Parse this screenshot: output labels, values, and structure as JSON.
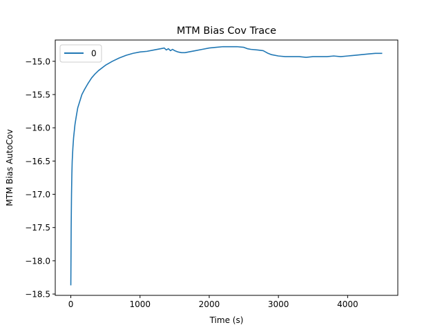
{
  "chart_data": {
    "type": "line",
    "title": "MTM Bias Cov Trace",
    "xlabel": "Time (s)",
    "ylabel": "MTM Bias AutoCov",
    "xlim": [
      -225,
      4725
    ],
    "ylim": [
      -18.52,
      -14.68
    ],
    "xticks": [
      0,
      1000,
      2000,
      3000,
      4000
    ],
    "yticks": [
      -18.5,
      -18.0,
      -17.5,
      -17.0,
      -16.5,
      -16.0,
      -15.5,
      -15.0
    ],
    "xtick_labels": [
      "0",
      "1000",
      "2000",
      "3000",
      "4000"
    ],
    "ytick_labels": [
      "−18.5",
      "−18.0",
      "−17.5",
      "−17.0",
      "−16.5",
      "−16.0",
      "−15.5",
      "−15.0"
    ],
    "grid": false,
    "legend_position": "upper-left",
    "series": [
      {
        "name": "0",
        "color": "#1f77b4",
        "points": [
          [
            0,
            -18.37
          ],
          [
            5,
            -17.5
          ],
          [
            10,
            -17.0
          ],
          [
            15,
            -16.7
          ],
          [
            20,
            -16.5
          ],
          [
            30,
            -16.3
          ],
          [
            40,
            -16.15
          ],
          [
            60,
            -15.95
          ],
          [
            80,
            -15.82
          ],
          [
            100,
            -15.7
          ],
          [
            130,
            -15.6
          ],
          [
            160,
            -15.5
          ],
          [
            200,
            -15.42
          ],
          [
            250,
            -15.33
          ],
          [
            300,
            -15.25
          ],
          [
            350,
            -15.19
          ],
          [
            400,
            -15.14
          ],
          [
            500,
            -15.06
          ],
          [
            600,
            -15.0
          ],
          [
            700,
            -14.95
          ],
          [
            800,
            -14.91
          ],
          [
            900,
            -14.88
          ],
          [
            1000,
            -14.86
          ],
          [
            1100,
            -14.85
          ],
          [
            1200,
            -14.83
          ],
          [
            1300,
            -14.81
          ],
          [
            1350,
            -14.8
          ],
          [
            1380,
            -14.83
          ],
          [
            1410,
            -14.81
          ],
          [
            1440,
            -14.84
          ],
          [
            1470,
            -14.82
          ],
          [
            1500,
            -14.84
          ],
          [
            1550,
            -14.86
          ],
          [
            1600,
            -14.87
          ],
          [
            1650,
            -14.87
          ],
          [
            1700,
            -14.86
          ],
          [
            1800,
            -14.84
          ],
          [
            1900,
            -14.82
          ],
          [
            2000,
            -14.8
          ],
          [
            2100,
            -14.79
          ],
          [
            2200,
            -14.78
          ],
          [
            2300,
            -14.78
          ],
          [
            2400,
            -14.78
          ],
          [
            2500,
            -14.79
          ],
          [
            2550,
            -14.81
          ],
          [
            2600,
            -14.82
          ],
          [
            2700,
            -14.83
          ],
          [
            2780,
            -14.84
          ],
          [
            2850,
            -14.88
          ],
          [
            2900,
            -14.9
          ],
          [
            3000,
            -14.92
          ],
          [
            3100,
            -14.93
          ],
          [
            3200,
            -14.93
          ],
          [
            3300,
            -14.93
          ],
          [
            3400,
            -14.94
          ],
          [
            3500,
            -14.93
          ],
          [
            3600,
            -14.93
          ],
          [
            3700,
            -14.93
          ],
          [
            3800,
            -14.92
          ],
          [
            3900,
            -14.93
          ],
          [
            4000,
            -14.92
          ],
          [
            4100,
            -14.91
          ],
          [
            4200,
            -14.9
          ],
          [
            4300,
            -14.89
          ],
          [
            4400,
            -14.88
          ],
          [
            4500,
            -14.88
          ]
        ]
      }
    ]
  }
}
